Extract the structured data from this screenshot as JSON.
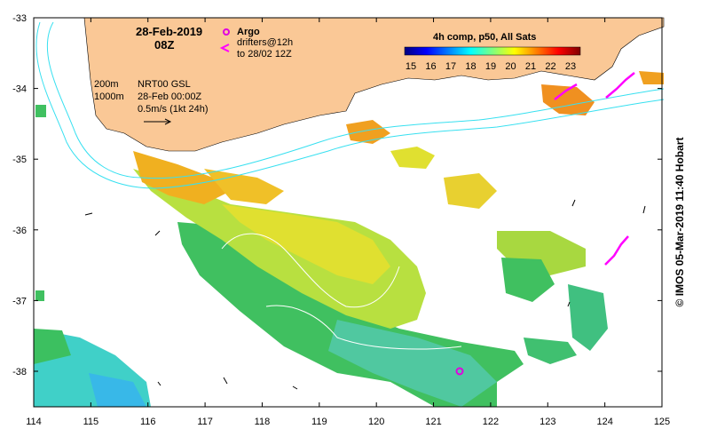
{
  "title": {
    "date": "28-Feb-2019",
    "time": "08Z"
  },
  "legend": {
    "argo_label": "Argo",
    "drifters_label": "drifters@12h",
    "drifters_range": "to 28/02 12Z",
    "argo_color": "#e000e0",
    "drifter_color": "#ff00ff"
  },
  "info": {
    "contour_200": "200m",
    "contour_1000": "1000m",
    "source": "NRT00 GSL",
    "current_date": "28-Feb 00:00Z",
    "scale": "0.5m/s (1kt 24h)"
  },
  "colorbar": {
    "title": "4h comp, p50, All Sats",
    "labels": [
      "15",
      "16",
      "17",
      "18",
      "19",
      "20",
      "21",
      "22",
      "23"
    ],
    "colors": [
      "#00007f",
      "#0000ff",
      "#007fff",
      "#00ffff",
      "#7fff7f",
      "#ffff00",
      "#ff7f00",
      "#ff0000",
      "#7f0000"
    ]
  },
  "axes": {
    "x_ticks": [
      "114",
      "115",
      "116",
      "117",
      "118",
      "119",
      "120",
      "121",
      "122",
      "123",
      "124",
      "125"
    ],
    "y_ticks": [
      "-33",
      "-34",
      "-35",
      "-36",
      "-37",
      "-38"
    ]
  },
  "credit": "© IMOS 05-Mar-2019 11:40 Hobart",
  "colors": {
    "land": "#fac896",
    "contour": "#38e0f0"
  }
}
